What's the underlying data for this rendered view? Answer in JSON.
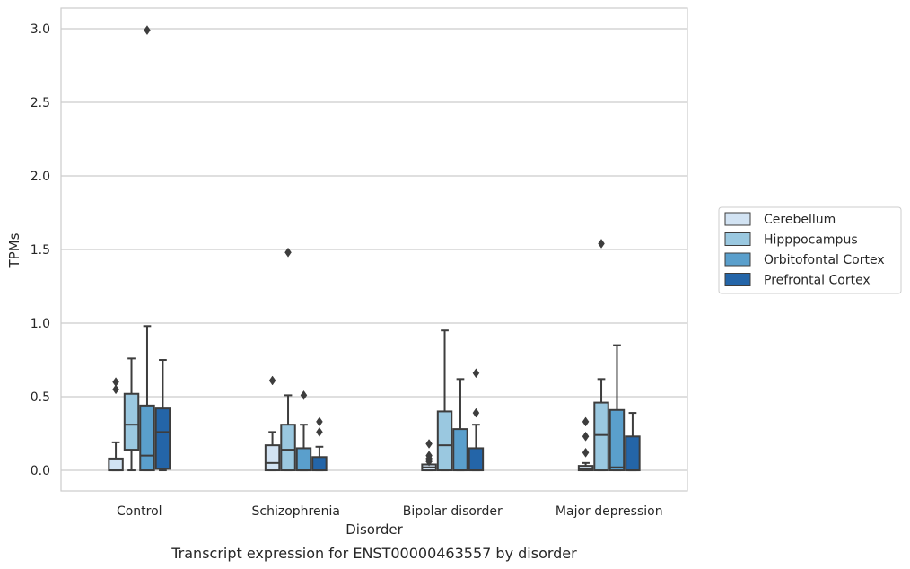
{
  "chart_data": {
    "type": "box",
    "caption": "Transcript expression for ENST00000463557 by disorder",
    "xlabel": "Disorder",
    "ylabel": "TPMs",
    "ylim": [
      -0.14,
      3.14
    ],
    "yticks": [
      "0.0",
      "0.5",
      "1.0",
      "1.5",
      "2.0",
      "2.5",
      "3.0"
    ],
    "ytick_values": [
      0.0,
      0.5,
      1.0,
      1.5,
      2.0,
      2.5,
      3.0
    ],
    "grid": "horizontal",
    "legend_position": "right",
    "categories": [
      "Control",
      "Schizophrenia",
      "Bipolar disorder",
      "Major depression"
    ],
    "series": [
      {
        "name": "Cerebellum",
        "color": "#d2e3f3",
        "boxes": [
          {
            "q1": 0.0,
            "median": 0.0,
            "q3": 0.08,
            "whisker_low": 0.0,
            "whisker_high": 0.19,
            "outliers": [
              0.55,
              0.6
            ]
          },
          {
            "q1": 0.0,
            "median": 0.05,
            "q3": 0.17,
            "whisker_low": 0.0,
            "whisker_high": 0.26,
            "outliers": [
              0.61
            ]
          },
          {
            "q1": 0.0,
            "median": 0.02,
            "q3": 0.04,
            "whisker_low": 0.0,
            "whisker_high": 0.04,
            "outliers": [
              0.06,
              0.08,
              0.1,
              0.18
            ]
          },
          {
            "q1": 0.0,
            "median": 0.01,
            "q3": 0.03,
            "whisker_low": 0.0,
            "whisker_high": 0.05,
            "outliers": [
              0.12,
              0.23,
              0.33
            ]
          }
        ]
      },
      {
        "name": "Hipppocampus",
        "color": "#9ac8e0",
        "boxes": [
          {
            "q1": 0.14,
            "median": 0.31,
            "q3": 0.52,
            "whisker_low": 0.0,
            "whisker_high": 0.76,
            "outliers": []
          },
          {
            "q1": 0.0,
            "median": 0.14,
            "q3": 0.31,
            "whisker_low": 0.0,
            "whisker_high": 0.51,
            "outliers": [
              1.48
            ]
          },
          {
            "q1": 0.0,
            "median": 0.17,
            "q3": 0.4,
            "whisker_low": 0.0,
            "whisker_high": 0.95,
            "outliers": []
          },
          {
            "q1": 0.0,
            "median": 0.24,
            "q3": 0.46,
            "whisker_low": 0.0,
            "whisker_high": 0.62,
            "outliers": [
              1.54
            ]
          }
        ]
      },
      {
        "name": "Orbitofontal Cortex",
        "color": "#5a9fcc",
        "boxes": [
          {
            "q1": 0.0,
            "median": 0.1,
            "q3": 0.44,
            "whisker_low": 0.0,
            "whisker_high": 0.98,
            "outliers": [
              2.99
            ]
          },
          {
            "q1": 0.0,
            "median": 0.0,
            "q3": 0.15,
            "whisker_low": 0.0,
            "whisker_high": 0.31,
            "outliers": [
              0.51
            ]
          },
          {
            "q1": 0.0,
            "median": 0.0,
            "q3": 0.28,
            "whisker_low": 0.0,
            "whisker_high": 0.62,
            "outliers": []
          },
          {
            "q1": 0.0,
            "median": 0.02,
            "q3": 0.41,
            "whisker_low": 0.0,
            "whisker_high": 0.85,
            "outliers": []
          }
        ]
      },
      {
        "name": "Prefrontal Cortex",
        "color": "#2465a8",
        "boxes": [
          {
            "q1": 0.01,
            "median": 0.26,
            "q3": 0.42,
            "whisker_low": 0.0,
            "whisker_high": 0.75,
            "outliers": []
          },
          {
            "q1": 0.0,
            "median": 0.0,
            "q3": 0.09,
            "whisker_low": 0.0,
            "whisker_high": 0.16,
            "outliers": [
              0.26,
              0.33
            ]
          },
          {
            "q1": 0.0,
            "median": 0.0,
            "q3": 0.15,
            "whisker_low": 0.0,
            "whisker_high": 0.31,
            "outliers": [
              0.39,
              0.66
            ]
          },
          {
            "q1": 0.0,
            "median": 0.0,
            "q3": 0.23,
            "whisker_low": 0.0,
            "whisker_high": 0.39,
            "outliers": []
          }
        ]
      }
    ]
  }
}
